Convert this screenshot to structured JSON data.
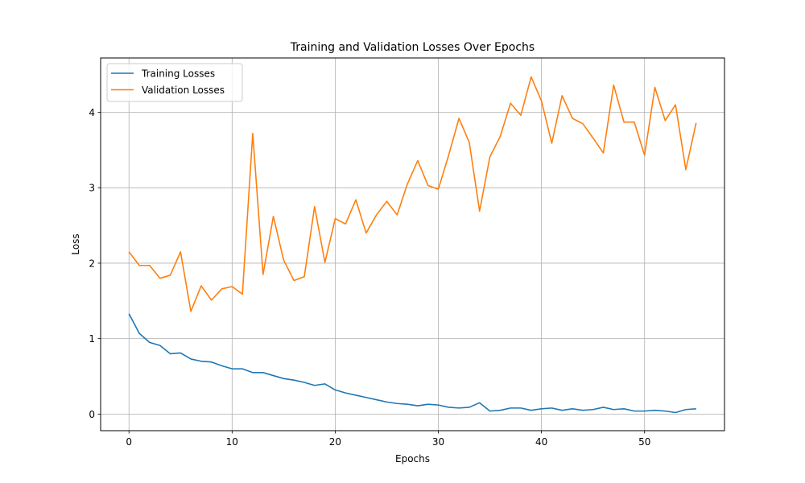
{
  "chart_data": {
    "type": "line",
    "title": "Training and Validation Losses Over Epochs",
    "xlabel": "Epochs",
    "ylabel": "Loss",
    "xlim": [
      -2.75,
      57.75
    ],
    "ylim": [
      -0.22,
      4.72
    ],
    "xticks": [
      0,
      10,
      20,
      30,
      40,
      50
    ],
    "yticks": [
      0,
      1,
      2,
      3,
      4
    ],
    "grid": true,
    "legend_position": "upper-left",
    "series": [
      {
        "name": "Training Losses",
        "color": "#1f77b4",
        "x": [
          0,
          1,
          2,
          3,
          4,
          5,
          6,
          7,
          8,
          9,
          10,
          11,
          12,
          13,
          14,
          15,
          16,
          17,
          18,
          19,
          20,
          21,
          22,
          23,
          24,
          25,
          26,
          27,
          28,
          29,
          30,
          31,
          32,
          33,
          34,
          35,
          36,
          37,
          38,
          39,
          40,
          41,
          42,
          43,
          44,
          45,
          46,
          47,
          48,
          49,
          50,
          51,
          52,
          53,
          54,
          55
        ],
        "values": [
          1.33,
          1.07,
          0.95,
          0.91,
          0.8,
          0.81,
          0.73,
          0.7,
          0.69,
          0.64,
          0.6,
          0.6,
          0.55,
          0.55,
          0.51,
          0.47,
          0.45,
          0.42,
          0.38,
          0.4,
          0.32,
          0.28,
          0.25,
          0.22,
          0.19,
          0.16,
          0.14,
          0.13,
          0.11,
          0.13,
          0.12,
          0.09,
          0.08,
          0.09,
          0.15,
          0.04,
          0.05,
          0.08,
          0.08,
          0.05,
          0.07,
          0.08,
          0.05,
          0.07,
          0.05,
          0.06,
          0.09,
          0.06,
          0.07,
          0.04,
          0.04,
          0.05,
          0.04,
          0.02,
          0.06,
          0.07
        ]
      },
      {
        "name": "Validation Losses",
        "color": "#ff7f0e",
        "x": [
          0,
          1,
          2,
          3,
          4,
          5,
          6,
          7,
          8,
          9,
          10,
          11,
          12,
          13,
          14,
          15,
          16,
          17,
          18,
          19,
          20,
          21,
          22,
          23,
          24,
          25,
          26,
          27,
          28,
          29,
          30,
          31,
          32,
          33,
          34,
          35,
          36,
          37,
          38,
          39,
          40,
          41,
          42,
          43,
          44,
          45,
          46,
          47,
          48,
          49,
          50,
          51,
          52,
          53,
          54,
          55
        ],
        "values": [
          2.15,
          1.97,
          1.97,
          1.8,
          1.84,
          2.15,
          1.36,
          1.7,
          1.51,
          1.66,
          1.69,
          1.59,
          3.72,
          1.85,
          2.62,
          2.04,
          1.77,
          1.82,
          2.75,
          2.01,
          2.59,
          2.52,
          2.84,
          2.4,
          2.64,
          2.82,
          2.64,
          3.05,
          3.36,
          3.03,
          2.98,
          3.43,
          3.92,
          3.6,
          2.69,
          3.41,
          3.68,
          4.12,
          3.96,
          4.47,
          4.15,
          3.59,
          4.22,
          3.92,
          3.85,
          3.66,
          3.46,
          4.36,
          3.87,
          3.87,
          3.43,
          4.33,
          3.89,
          4.1,
          3.24,
          3.86
        ]
      }
    ]
  }
}
